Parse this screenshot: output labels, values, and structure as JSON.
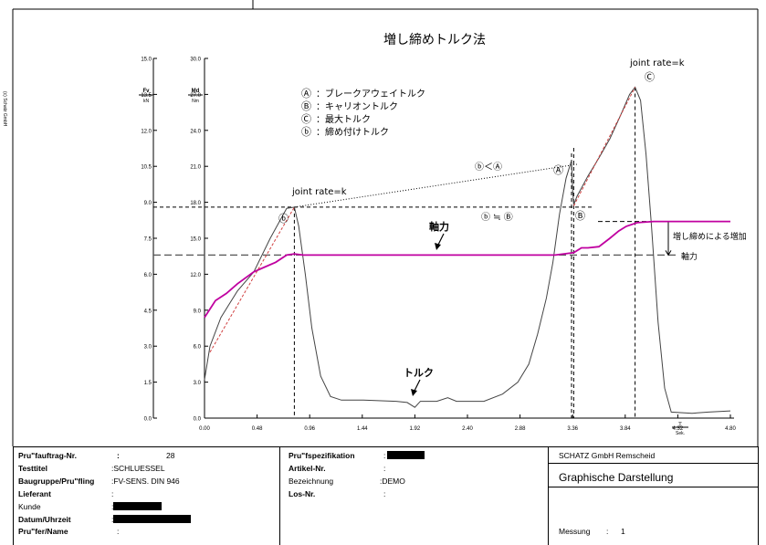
{
  "chart_data": {
    "type": "line",
    "title": "増し締めトルク法",
    "copyright": "(c) Schatz GmbH",
    "x_axis": {
      "ticks": [
        "0.00",
        "0.48",
        "0.96",
        "1.44",
        "1.92",
        "2.40",
        "2.88",
        "3.36",
        "3.84",
        "4.32",
        "4.80"
      ],
      "range": [
        0,
        4.8
      ],
      "unit_symbol": "T",
      "unit": "Sek."
    },
    "y_left_axis": {
      "ticks": [
        "0.0",
        "1.5",
        "3.0",
        "4.5",
        "6.0",
        "7.5",
        "9.0",
        "10.5",
        "12.0",
        "13.5",
        "15.0"
      ],
      "range": [
        0,
        15
      ],
      "label_top": "Fv",
      "label_unit": "kN"
    },
    "y_right_axis": {
      "ticks": [
        "0.0",
        "3.0",
        "6.0",
        "9.0",
        "12.0",
        "15.0",
        "18.0",
        "21.0",
        "24.0",
        "27.0",
        "30.0"
      ],
      "range": [
        0,
        30
      ],
      "label_top": "Md",
      "label_unit": "Nm"
    },
    "legend": [
      {
        "symbol": "Ⓐ",
        "text": "：ブレークアウェイトルク"
      },
      {
        "symbol": "Ⓑ",
        "text": "：キャリオントルク"
      },
      {
        "symbol": "Ⓒ",
        "text": "：最大トルク"
      },
      {
        "symbol": "ⓑ",
        "text": "：締め付けトルク"
      }
    ],
    "annotations": {
      "joint_rate_1": "joint rate=k",
      "joint_rate_2": "joint rate=k",
      "b_less_A": "ⓑ＜Ⓐ",
      "b_approx_B": "ⓑ ≒ Ⓑ",
      "axial_label": "軸力",
      "torque_label": "トルク",
      "increase_label": "増し締めによる増加",
      "axial_right": "軸力",
      "marker_b": "ⓑ",
      "marker_A": "Ⓐ",
      "marker_B": "Ⓑ",
      "marker_C": "Ⓒ"
    },
    "series": [
      {
        "name": "トルク",
        "color": "#444444",
        "axis": "right",
        "points": [
          [
            0,
            3.2
          ],
          [
            0.05,
            6.0
          ],
          [
            0.15,
            8.4
          ],
          [
            0.3,
            10.6
          ],
          [
            0.45,
            12.2
          ],
          [
            0.6,
            15.0
          ],
          [
            0.75,
            17.5
          ],
          [
            0.82,
            17.6
          ],
          [
            0.86,
            16.0
          ],
          [
            0.92,
            12.0
          ],
          [
            0.98,
            7.5
          ],
          [
            1.06,
            3.5
          ],
          [
            1.15,
            1.8
          ],
          [
            1.25,
            1.5
          ],
          [
            1.45,
            1.5
          ],
          [
            1.75,
            1.4
          ],
          [
            1.85,
            1.3
          ],
          [
            1.92,
            0.9
          ],
          [
            1.97,
            1.4
          ],
          [
            2.12,
            1.4
          ],
          [
            2.22,
            1.7
          ],
          [
            2.3,
            1.4
          ],
          [
            2.55,
            1.4
          ],
          [
            2.72,
            2.0
          ],
          [
            2.86,
            3.0
          ],
          [
            2.96,
            4.5
          ],
          [
            3.04,
            7.0
          ],
          [
            3.12,
            10.0
          ],
          [
            3.18,
            13.0
          ],
          [
            3.24,
            17.0
          ],
          [
            3.3,
            20.0
          ],
          [
            3.35,
            21.5
          ],
          [
            3.36,
            19.0
          ],
          [
            3.37,
            17.8
          ],
          [
            3.4,
            18.5
          ],
          [
            3.5,
            20.2
          ],
          [
            3.6,
            21.7
          ],
          [
            3.7,
            23.3
          ],
          [
            3.8,
            25.3
          ],
          [
            3.88,
            27.0
          ],
          [
            3.93,
            27.6
          ],
          [
            3.98,
            26.5
          ],
          [
            4.03,
            22.0
          ],
          [
            4.08,
            16.0
          ],
          [
            4.14,
            8.0
          ],
          [
            4.2,
            2.5
          ],
          [
            4.26,
            0.5
          ],
          [
            4.45,
            0.4
          ],
          [
            4.6,
            0.5
          ],
          [
            4.8,
            0.6
          ]
        ]
      },
      {
        "name": "軸力",
        "color": "#c000a0",
        "axis": "left",
        "points": [
          [
            0,
            4.2
          ],
          [
            0.1,
            4.9
          ],
          [
            0.2,
            5.2
          ],
          [
            0.3,
            5.6
          ],
          [
            0.45,
            6.1
          ],
          [
            0.55,
            6.3
          ],
          [
            0.65,
            6.5
          ],
          [
            0.75,
            6.8
          ],
          [
            0.82,
            6.85
          ],
          [
            0.9,
            6.8
          ],
          [
            1.2,
            6.8
          ],
          [
            1.6,
            6.8
          ],
          [
            2.0,
            6.8
          ],
          [
            2.4,
            6.8
          ],
          [
            2.8,
            6.8
          ],
          [
            3.2,
            6.8
          ],
          [
            3.37,
            6.9
          ],
          [
            3.44,
            7.1
          ],
          [
            3.5,
            7.1
          ],
          [
            3.6,
            7.15
          ],
          [
            3.7,
            7.5
          ],
          [
            3.78,
            7.8
          ],
          [
            3.85,
            8.0
          ],
          [
            3.95,
            8.15
          ],
          [
            4.1,
            8.2
          ],
          [
            4.3,
            8.2
          ],
          [
            4.5,
            8.2
          ],
          [
            4.7,
            8.2
          ],
          [
            4.8,
            8.2
          ]
        ]
      },
      {
        "name": "joint rate",
        "color": "#d04040",
        "axis": "right",
        "dashed": true,
        "points_1": [
          [
            0.05,
            5.5
          ],
          [
            0.82,
            17.6
          ]
        ],
        "points_2": [
          [
            3.37,
            17.7
          ],
          [
            3.93,
            27.6
          ]
        ]
      }
    ]
  },
  "footer": {
    "pruefauftrag_label": "Pru\"fauftrag-Nr.",
    "pruefauftrag_colon": ":",
    "pruefauftrag_value": "28",
    "testtitel_label": "Testtitel",
    "testtitel_value": ":SCHLUESSEL",
    "baugruppe_label": "Baugruppe/Pru\"fling",
    "baugruppe_value": ":FV-SENS. DIN 946",
    "lieferant_label": "Lieferant",
    "lieferant_value": ":",
    "kunde_label": "Kunde",
    "kunde_value": ":",
    "datum_label": "Datum/Uhrzeit",
    "datum_value": ":",
    "pruefer_label": "Pru\"fer/Name",
    "pruefer_value": ":",
    "spezifikation_label": "Pru\"fspezifikation",
    "spezifikation_value": ":",
    "artikel_label": "Artikel-Nr.",
    "artikel_value": ":",
    "bezeichnung_label": "Bezeichnung",
    "bezeichnung_value": ":DEMO",
    "losnr_label": "Los-Nr.",
    "losnr_value": ":",
    "company": "SCHATZ GmbH Remscheid",
    "graphic_title": "Graphische Darstellung",
    "messung_label": "Messung",
    "messung_colon": ":",
    "messung_value": "1"
  }
}
